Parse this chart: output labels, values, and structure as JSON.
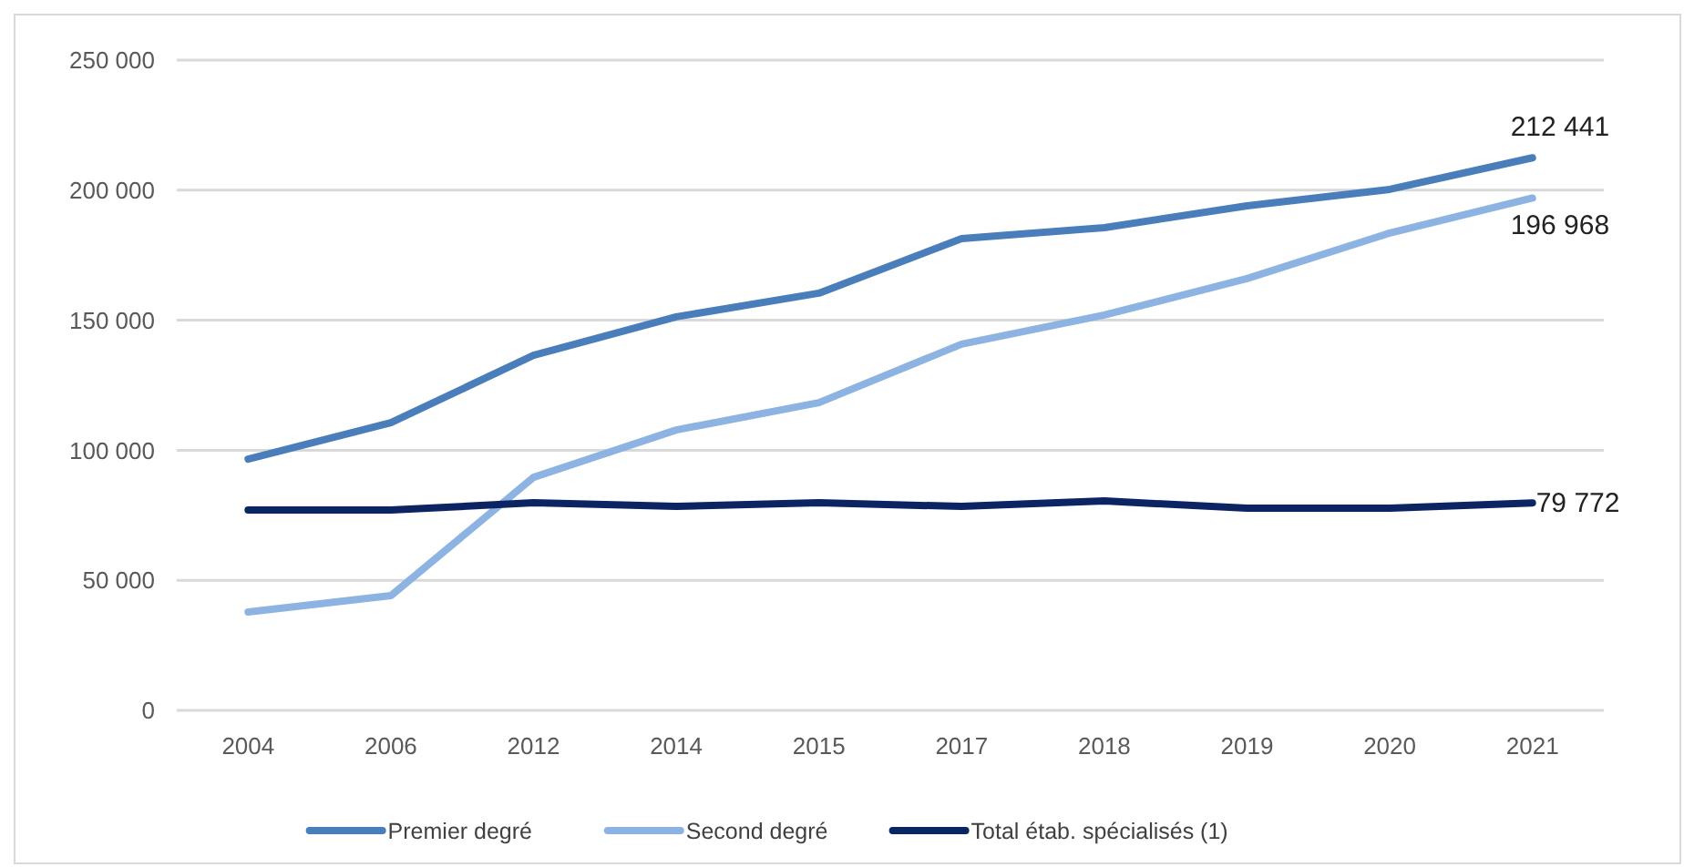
{
  "chart_data": {
    "type": "line",
    "categories": [
      "2004",
      "2006",
      "2012",
      "2014",
      "2015",
      "2017",
      "2018",
      "2019",
      "2020",
      "2021"
    ],
    "series": [
      {
        "name": "Premier degré",
        "color": "#4a7ebb",
        "values": [
          96600,
          110600,
          136500,
          151300,
          160400,
          181400,
          185600,
          194000,
          200300,
          212441
        ]
      },
      {
        "name": "Second degré",
        "color": "#8db3e2",
        "values": [
          37800,
          44100,
          89600,
          107800,
          118300,
          140800,
          152000,
          166000,
          183500,
          196968
        ]
      },
      {
        "name": "Total étab. spécialisés (1)",
        "color": "#0d2463",
        "values": [
          77000,
          77000,
          79800,
          78400,
          79800,
          78400,
          80500,
          77700,
          77700,
          79772
        ]
      }
    ],
    "ylim": [
      0,
      250000
    ],
    "yticks": [
      {
        "value": 0,
        "label": "0"
      },
      {
        "value": 50000,
        "label": "50 000"
      },
      {
        "value": 100000,
        "label": "100 000"
      },
      {
        "value": 150000,
        "label": "150 000"
      },
      {
        "value": 200000,
        "label": "200 000"
      },
      {
        "value": 250000,
        "label": "250 000"
      }
    ],
    "grid": "y",
    "legend": "bottom",
    "marker": "none",
    "line_style": "solid",
    "annotations": [
      {
        "text": "212 441",
        "x": "2021",
        "y": 212441
      },
      {
        "text": "196 968",
        "x": "2021",
        "y": 196968
      },
      {
        "text": "79 772",
        "x": "2021",
        "y": 79772
      }
    ]
  }
}
